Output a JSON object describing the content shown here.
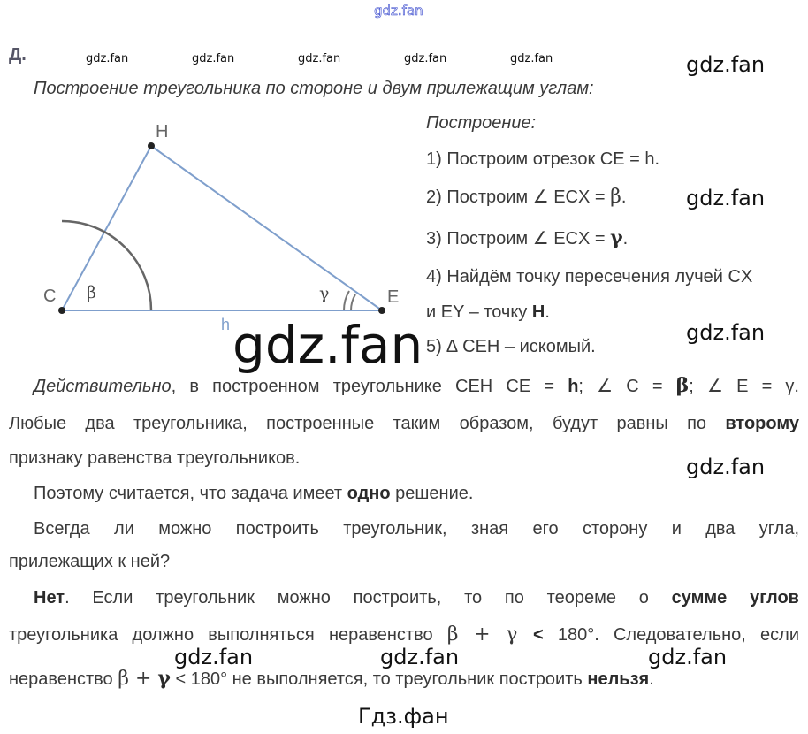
{
  "watermarks": {
    "top": "gdz.fan",
    "small": [
      "gdz.fan",
      "gdz.fan",
      "gdz.fan",
      "gdz.fan",
      "gdz.fan"
    ],
    "right": [
      "gdz.fan",
      "gdz.fan",
      "gdz.fan",
      "gdz.fan"
    ],
    "big": "gdz.fan",
    "bottom": [
      "gdz.fan",
      "gdz.fan",
      "gdz.fan"
    ],
    "footer": "Гдз.фан"
  },
  "section_label": "Д.",
  "heading": "Построение треугольника по стороне и двум прилежащим углам:",
  "figure": {
    "labels": {
      "H": "H",
      "C": "C",
      "E": "E",
      "beta": "β",
      "gamma": "γ",
      "h": "h"
    },
    "line_color": "#7f9fcc"
  },
  "construction": {
    "title": "Построение:",
    "steps": [
      "1) Построим отрезок CE = h.",
      "2) Построим ∠ ECX = ",
      "β",
      ".",
      "3) Построим ∠ ECX = ",
      "γ",
      ".",
      "4) Найдём точку пересечения лучей CX",
      "и EY – точку ",
      "H",
      ".",
      "5) ∆ CEH – искомый."
    ]
  },
  "body": {
    "p1": {
      "a": "Действительно",
      "b": ", в построенном треугольнике CEH CE = ",
      "c": "h",
      "d": "; ∠ C = ",
      "e": "β",
      "f": "; ∠ E = γ."
    },
    "p1_l2": {
      "a": "Любые два треугольника, построенные таким образом, будут равны по ",
      "b": "второму"
    },
    "p1_l3": "признаку равенства треугольников.",
    "p2": {
      "a": "Поэтому считается, что задача имеет ",
      "b": "одно",
      "c": " решение."
    },
    "p3_l1": "Всегда ли можно построить треугольник, зная его сторону и два угла,",
    "p3_l2": "прилежащих к ней?",
    "p4_l1": {
      "a": "Нет",
      "b": ". Если треугольник можно построить, то по теореме о ",
      "c": "сумме углов"
    },
    "p4_l2": {
      "a": "треугольника должно выполняться неравенство ",
      "b": "β + γ ",
      "c": "<",
      "d": " 180°. Следовательно, если"
    },
    "p4_l3": {
      "a": "неравенство ",
      "b": "β + ",
      "c": "γ",
      "d": " < 180° не выполняется, то треугольник построить ",
      "e": "нельзя",
      "f": "."
    }
  }
}
